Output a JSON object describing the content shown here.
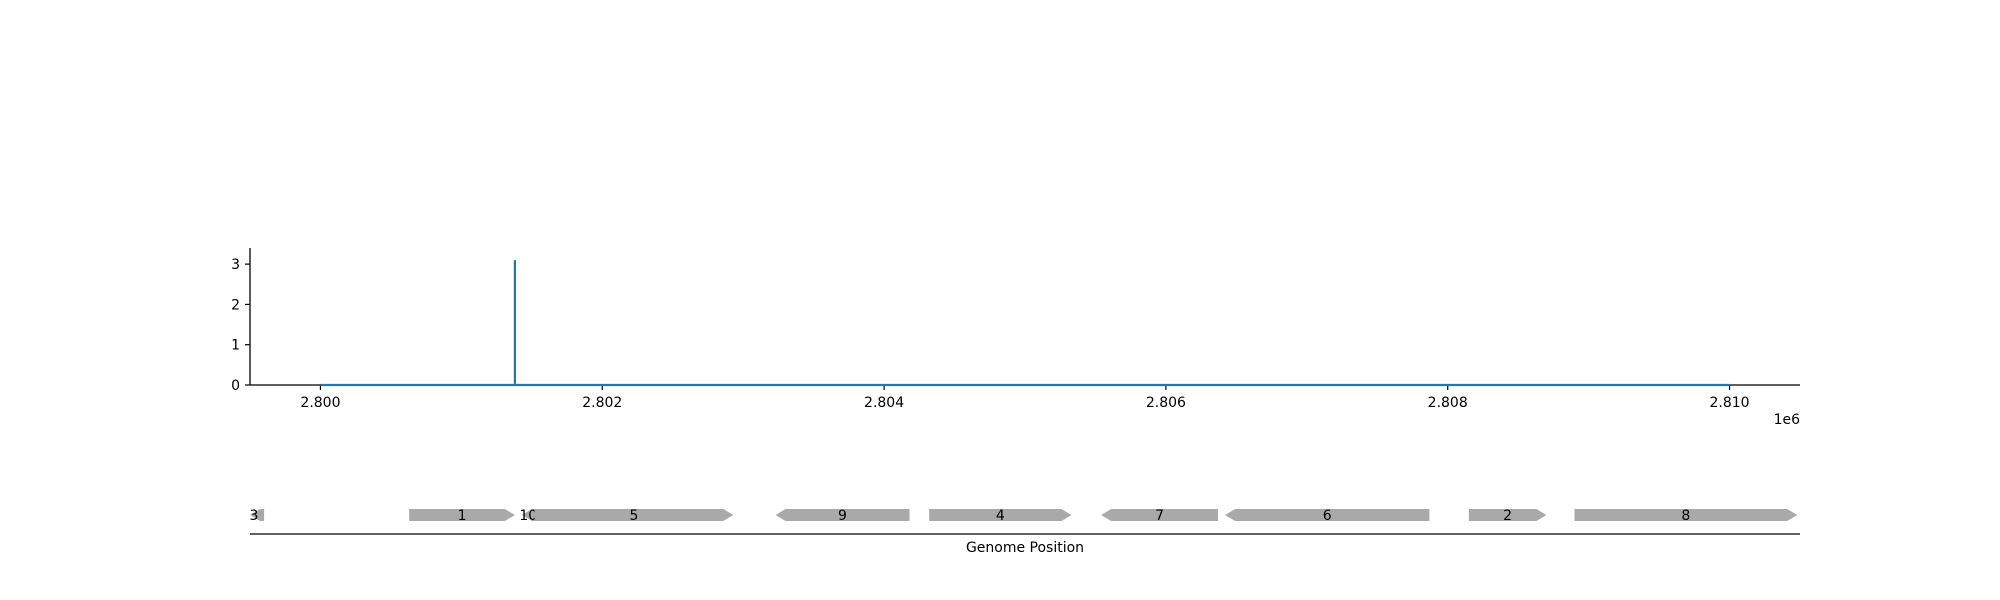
{
  "chart_data": [
    {
      "type": "line",
      "title": "",
      "xlabel": "",
      "ylabel": "",
      "x_offset_label": "1e6",
      "xlim": [
        2799500,
        2810500
      ],
      "ylim": [
        0,
        3.4
      ],
      "x_ticks": [
        2800000,
        2802000,
        2804000,
        2806000,
        2808000,
        2810000
      ],
      "x_tick_labels": [
        "2.800",
        "2.802",
        "2.804",
        "2.806",
        "2.808",
        "2.810"
      ],
      "y_ticks": [
        0,
        1,
        2,
        3
      ],
      "y_tick_labels": [
        "0",
        "1",
        "2",
        "3"
      ],
      "grid": false,
      "legend": "none",
      "color": "#1f77b4",
      "series": [
        {
          "x": [
            2800000,
            2801380,
            2801380,
            2801380,
            2801380,
            2810000
          ],
          "y": [
            0,
            0,
            3.1,
            3.1,
            0,
            0
          ]
        }
      ]
    },
    {
      "type": "gene_track",
      "xlabel": "Genome Position",
      "xlim": [
        2799500,
        2810500
      ],
      "color": "#a9a9a9",
      "genes": [
        {
          "label": "3",
          "start": 2799400,
          "end": 2799600,
          "strand": "-"
        },
        {
          "label": "1",
          "start": 2800630,
          "end": 2801380,
          "strand": "+"
        },
        {
          "label": "10",
          "start": 2801430,
          "end": 2801520,
          "strand": "-"
        },
        {
          "label": "5",
          "start": 2801520,
          "end": 2802930,
          "strand": "+"
        },
        {
          "label": "9",
          "start": 2803230,
          "end": 2804180,
          "strand": "-"
        },
        {
          "label": "4",
          "start": 2804320,
          "end": 2805330,
          "strand": "+"
        },
        {
          "label": "7",
          "start": 2805540,
          "end": 2806370,
          "strand": "-"
        },
        {
          "label": "6",
          "start": 2806420,
          "end": 2807870,
          "strand": "-"
        },
        {
          "label": "2",
          "start": 2808150,
          "end": 2808700,
          "strand": "+"
        },
        {
          "label": "8",
          "start": 2808900,
          "end": 2810480,
          "strand": "+"
        }
      ]
    }
  ]
}
